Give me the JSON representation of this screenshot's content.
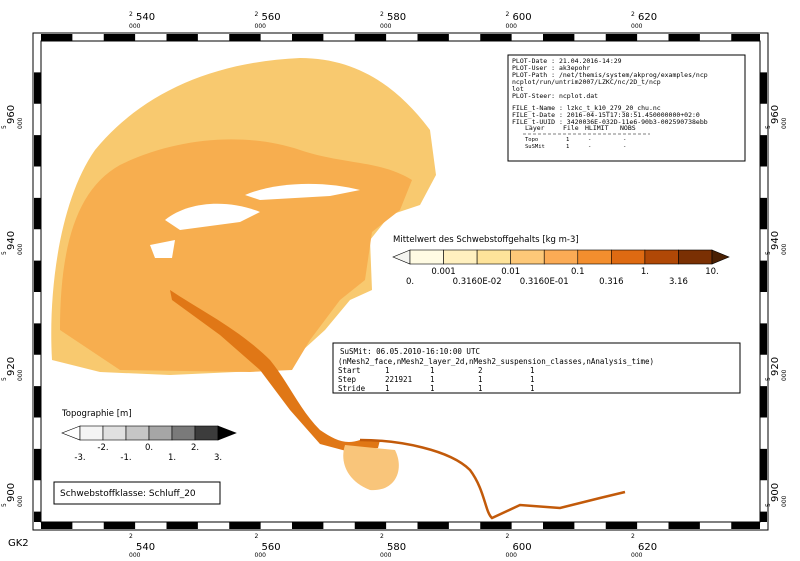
{
  "frame": {
    "crs": "GK2",
    "x_prefix": "2",
    "y_prefix": "5",
    "suffix": "000",
    "x_labels": [
      "540",
      "560",
      "580",
      "600",
      "620"
    ],
    "y_labels": [
      "960",
      "940",
      "920",
      "900"
    ]
  },
  "info": {
    "lines": [
      "PLOT-Date : 21.04.2016-14:29",
      "PLOT-User : ak3epohr",
      "PLOT-Path : /net/themis/system/akprog/examples/ncp",
      "ncplot/run/untrim2007/LZKC/nc/2D_t/ncp",
      "lot",
      "PLOT-Steer: ncplot.dat",
      "FILE_t-Name : lzkc_t_k10_279_20_chu.nc",
      "FILE_t-Date : 2016-04-15T17:38:51.450000000+02:0",
      "FILE_t-UUID : 3420036E-032D-11e6-90b3-002590738ebb"
    ],
    "table": {
      "header": [
        "Layer",
        "File",
        "HLIMIT",
        "NOBS"
      ],
      "rows": [
        [
          "Topo",
          "1",
          "-",
          "-"
        ],
        [
          "SuSMit",
          "1",
          "-",
          "-"
        ]
      ]
    }
  },
  "concentration_legend": {
    "title": "Mittelwert des Schwebstoffgehalts [kg m-3]",
    "labels": [
      "0.",
      "0.001",
      "0.3160E-02",
      "0.01",
      "0.3160E-01",
      "0.1",
      "0.316",
      "1.",
      "3.16",
      "10."
    ],
    "colors": [
      "#f4f4f0",
      "#fffbe3",
      "#fff0bf",
      "#fee39a",
      "#fdc878",
      "#fbab55",
      "#f38e2e",
      "#de6a12",
      "#b04806",
      "#7a3003",
      "#4a2003"
    ]
  },
  "susmit": {
    "time": "SuSMit: 06.05.2010-16:10:00 UTC",
    "dims": "(nMesh2_face,nMesh2_layer_2d,nMesh2_suspension_classes,nAnalysis_time)",
    "rows": [
      [
        "Start",
        "1",
        "1",
        "2",
        "1"
      ],
      [
        "Step",
        "221921",
        "1",
        "1",
        "1"
      ],
      [
        "Stride",
        "1",
        "1",
        "1",
        "1"
      ]
    ]
  },
  "topo_legend": {
    "title": "Topographie [m]",
    "labels": [
      "-3.",
      "-2.",
      "-1.",
      "0.",
      "1.",
      "2.",
      "3."
    ],
    "colors": [
      "#ffffff",
      "#f4f4f4",
      "#e0e0e0",
      "#c6c6c6",
      "#a6a6a6",
      "#7a7a7a",
      "#3c3c3c",
      "#000000"
    ]
  },
  "class_label": "Schwebstoffklasse: Schluff_20"
}
